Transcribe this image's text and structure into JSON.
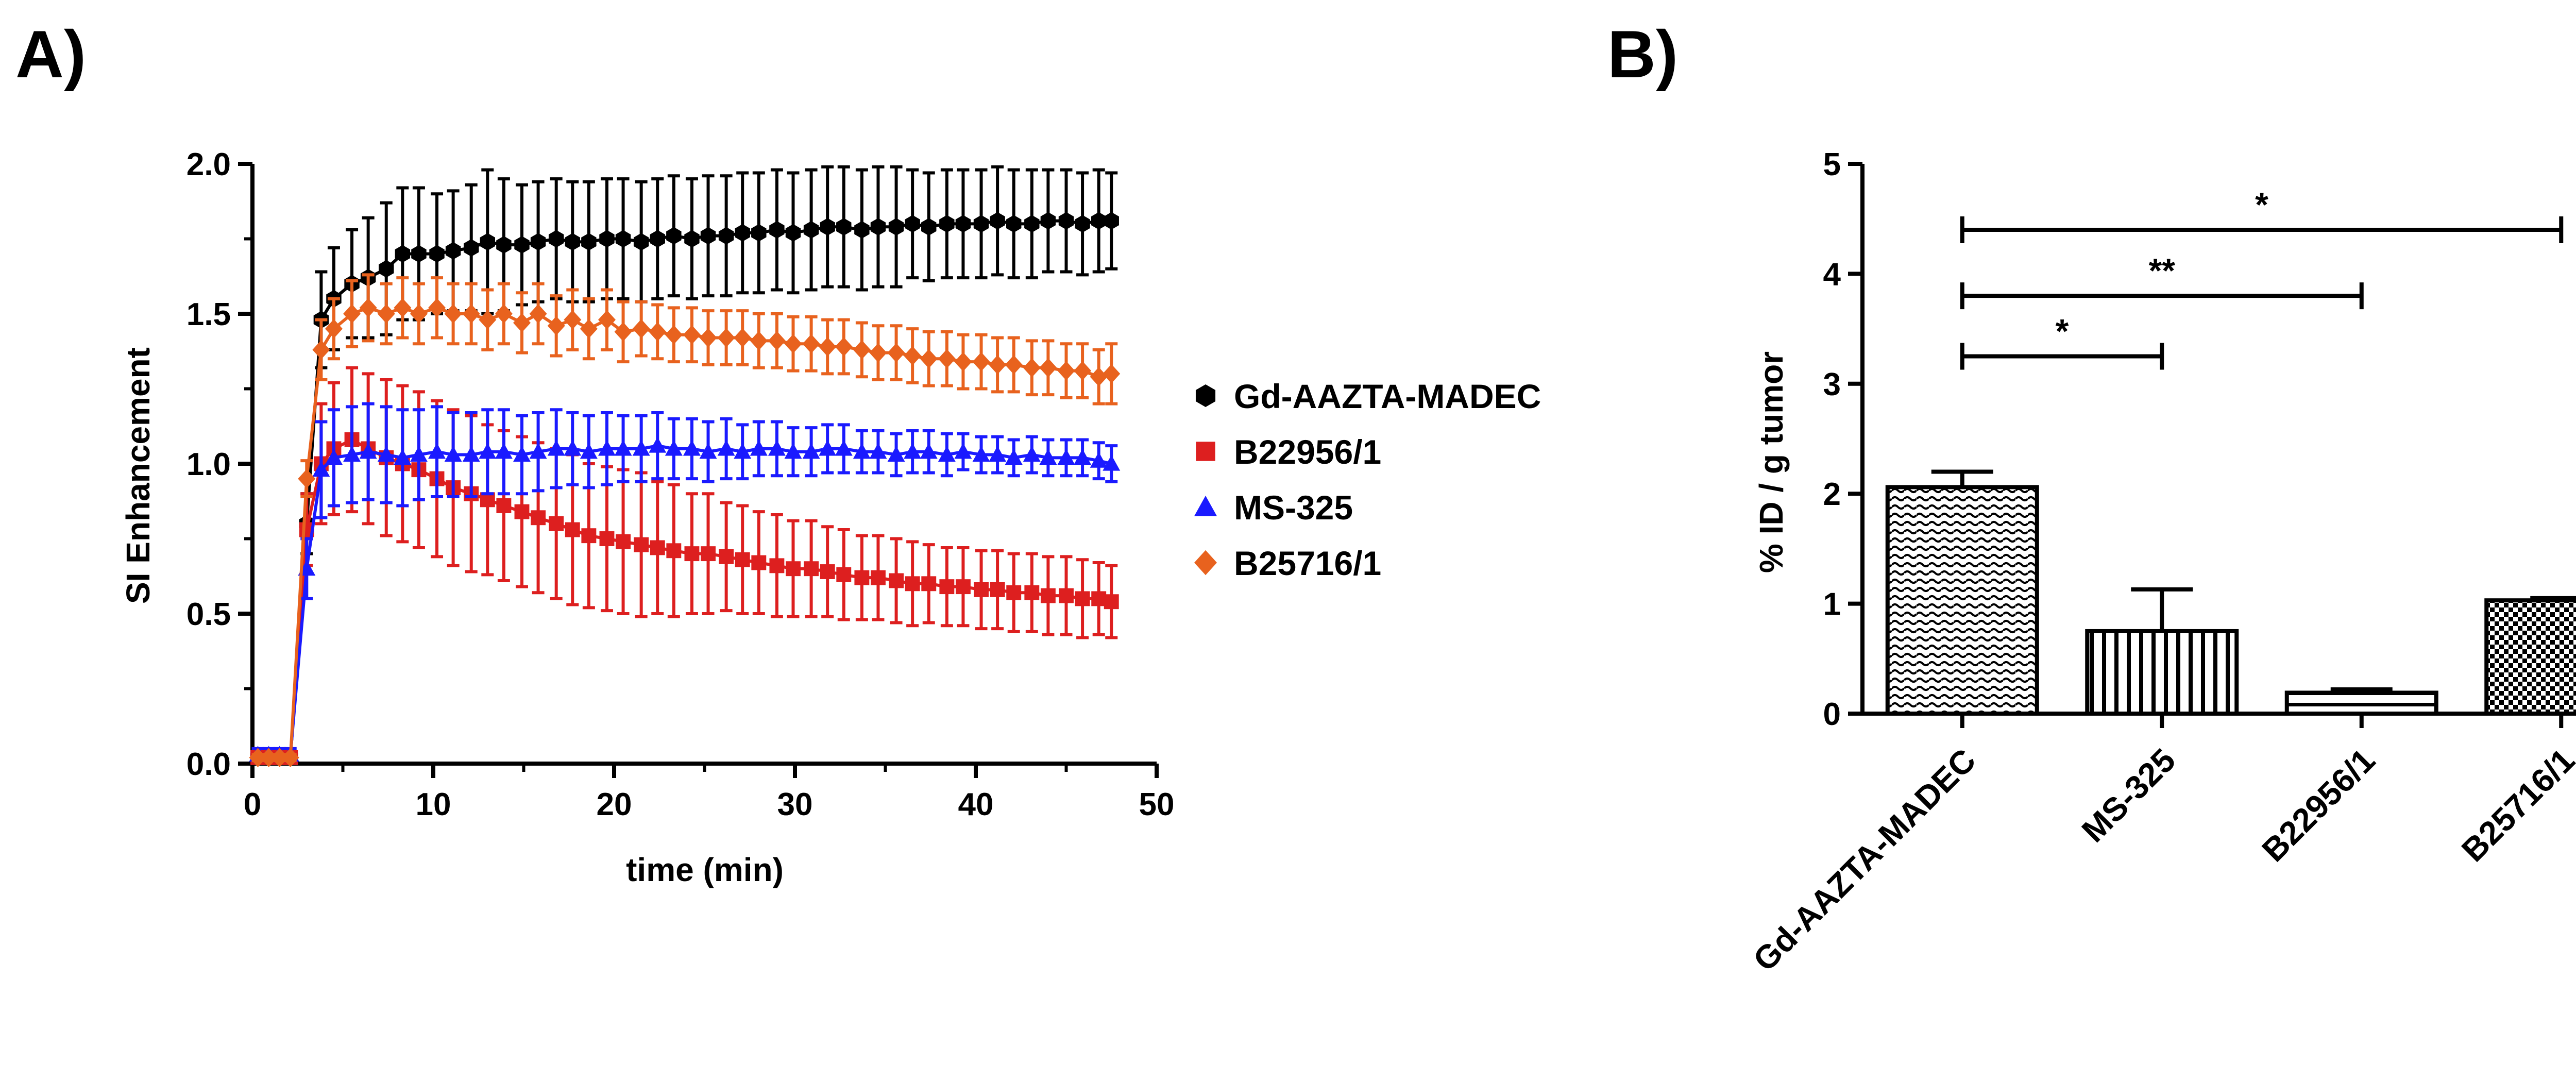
{
  "panel_labels": {
    "a": "A)",
    "b": "B)"
  },
  "colors": {
    "Gd-AAZTA-MADEC": "#000000",
    "B22956/1": "#dd1f1f",
    "MS-325": "#1a1aff",
    "B25716/1": "#e8621e",
    "axis": "#000000"
  },
  "chart_data": [
    {
      "type": "line",
      "panel": "A)",
      "title": "",
      "xlabel": "time (min)",
      "ylabel": "SI Enhancement",
      "xlim": [
        0,
        50
      ],
      "ylim": [
        0,
        2.0
      ],
      "xticks": [
        "0",
        "10",
        "20",
        "30",
        "40",
        "50"
      ],
      "yticks": [
        "0.0",
        "0.5",
        "1.0",
        "1.5",
        "2.0"
      ],
      "legend_position": "right",
      "series": [
        {
          "name": "Gd-AAZTA-MADEC",
          "marker": "hexagon",
          "x": [
            0.3,
            0.9,
            1.5,
            2.1,
            3.0,
            3.8,
            4.5,
            5.5,
            6.4,
            7.4,
            8.3,
            9.2,
            10.2,
            11.1,
            12.1,
            13.0,
            13.9,
            14.9,
            15.8,
            16.8,
            17.7,
            18.6,
            19.6,
            20.5,
            21.5,
            22.4,
            23.3,
            24.3,
            25.2,
            26.2,
            27.1,
            28.0,
            29.0,
            29.9,
            30.9,
            31.8,
            32.7,
            33.7,
            34.6,
            35.6,
            36.5,
            37.4,
            38.4,
            39.3,
            40.3,
            41.2,
            42.1,
            43.1,
            44.0,
            45.0,
            45.9,
            46.8,
            47.5
          ],
          "y": [
            0.02,
            0.02,
            0.02,
            0.02,
            0.8,
            1.48,
            1.55,
            1.6,
            1.62,
            1.65,
            1.7,
            1.7,
            1.7,
            1.71,
            1.72,
            1.74,
            1.73,
            1.73,
            1.74,
            1.75,
            1.74,
            1.74,
            1.75,
            1.75,
            1.74,
            1.75,
            1.76,
            1.75,
            1.76,
            1.76,
            1.77,
            1.77,
            1.78,
            1.77,
            1.78,
            1.79,
            1.79,
            1.78,
            1.79,
            1.79,
            1.8,
            1.79,
            1.8,
            1.8,
            1.8,
            1.81,
            1.8,
            1.8,
            1.81,
            1.81,
            1.8,
            1.81,
            1.81
          ],
          "error": [
            0.01,
            0.01,
            0.01,
            0.01,
            0.1,
            0.16,
            0.17,
            0.18,
            0.2,
            0.22,
            0.22,
            0.22,
            0.2,
            0.2,
            0.21,
            0.24,
            0.22,
            0.2,
            0.2,
            0.2,
            0.2,
            0.2,
            0.2,
            0.2,
            0.2,
            0.2,
            0.2,
            0.2,
            0.2,
            0.2,
            0.2,
            0.2,
            0.2,
            0.2,
            0.2,
            0.2,
            0.2,
            0.2,
            0.2,
            0.2,
            0.18,
            0.18,
            0.18,
            0.18,
            0.18,
            0.18,
            0.18,
            0.18,
            0.17,
            0.17,
            0.17,
            0.17,
            0.16
          ]
        },
        {
          "name": "B22956/1",
          "marker": "square",
          "x": [
            0.3,
            0.9,
            1.5,
            2.1,
            3.0,
            3.8,
            4.5,
            5.5,
            6.4,
            7.4,
            8.3,
            9.2,
            10.2,
            11.1,
            12.1,
            13.0,
            13.9,
            14.9,
            15.8,
            16.8,
            17.7,
            18.6,
            19.6,
            20.5,
            21.5,
            22.4,
            23.3,
            24.3,
            25.2,
            26.2,
            27.1,
            28.0,
            29.0,
            29.9,
            30.9,
            31.8,
            32.7,
            33.7,
            34.6,
            35.6,
            36.5,
            37.4,
            38.4,
            39.3,
            40.3,
            41.2,
            42.1,
            43.1,
            44.0,
            45.0,
            45.9,
            46.8,
            47.5
          ],
          "y": [
            0.02,
            0.02,
            0.02,
            0.02,
            0.78,
            1.0,
            1.05,
            1.08,
            1.05,
            1.02,
            1.0,
            0.98,
            0.95,
            0.92,
            0.9,
            0.88,
            0.86,
            0.84,
            0.82,
            0.8,
            0.78,
            0.76,
            0.75,
            0.74,
            0.73,
            0.72,
            0.71,
            0.7,
            0.7,
            0.69,
            0.68,
            0.67,
            0.66,
            0.65,
            0.65,
            0.64,
            0.63,
            0.62,
            0.62,
            0.61,
            0.6,
            0.6,
            0.59,
            0.59,
            0.58,
            0.58,
            0.57,
            0.57,
            0.56,
            0.56,
            0.55,
            0.55,
            0.54
          ],
          "error": [
            0.01,
            0.01,
            0.01,
            0.01,
            0.12,
            0.2,
            0.22,
            0.24,
            0.25,
            0.26,
            0.26,
            0.26,
            0.26,
            0.26,
            0.26,
            0.25,
            0.25,
            0.25,
            0.25,
            0.25,
            0.25,
            0.24,
            0.24,
            0.24,
            0.24,
            0.22,
            0.22,
            0.2,
            0.2,
            0.18,
            0.18,
            0.17,
            0.17,
            0.16,
            0.16,
            0.15,
            0.15,
            0.14,
            0.14,
            0.14,
            0.14,
            0.13,
            0.13,
            0.13,
            0.13,
            0.13,
            0.13,
            0.13,
            0.13,
            0.13,
            0.13,
            0.12,
            0.12
          ]
        },
        {
          "name": "MS-325",
          "marker": "triangle",
          "x": [
            0.3,
            0.9,
            1.5,
            2.1,
            3.0,
            3.8,
            4.5,
            5.5,
            6.4,
            7.4,
            8.3,
            9.2,
            10.2,
            11.1,
            12.1,
            13.0,
            13.9,
            14.9,
            15.8,
            16.8,
            17.7,
            18.6,
            19.6,
            20.5,
            21.5,
            22.4,
            23.3,
            24.3,
            25.2,
            26.2,
            27.1,
            28.0,
            29.0,
            29.9,
            30.9,
            31.8,
            32.7,
            33.7,
            34.6,
            35.6,
            36.5,
            37.4,
            38.4,
            39.3,
            40.3,
            41.2,
            42.1,
            43.1,
            44.0,
            45.0,
            45.9,
            46.8,
            47.5
          ],
          "y": [
            0.03,
            0.03,
            0.03,
            0.03,
            0.65,
            0.98,
            1.02,
            1.03,
            1.04,
            1.03,
            1.02,
            1.03,
            1.04,
            1.03,
            1.03,
            1.04,
            1.04,
            1.03,
            1.04,
            1.05,
            1.05,
            1.04,
            1.05,
            1.05,
            1.05,
            1.06,
            1.05,
            1.05,
            1.04,
            1.05,
            1.04,
            1.05,
            1.05,
            1.04,
            1.04,
            1.05,
            1.05,
            1.04,
            1.04,
            1.03,
            1.04,
            1.04,
            1.03,
            1.04,
            1.03,
            1.03,
            1.02,
            1.03,
            1.02,
            1.02,
            1.02,
            1.01,
            1.0
          ],
          "error": [
            0.02,
            0.02,
            0.02,
            0.02,
            0.1,
            0.16,
            0.16,
            0.16,
            0.16,
            0.16,
            0.16,
            0.15,
            0.15,
            0.14,
            0.14,
            0.14,
            0.14,
            0.13,
            0.13,
            0.13,
            0.12,
            0.12,
            0.12,
            0.11,
            0.11,
            0.11,
            0.1,
            0.1,
            0.1,
            0.1,
            0.09,
            0.09,
            0.09,
            0.08,
            0.08,
            0.08,
            0.08,
            0.07,
            0.07,
            0.07,
            0.07,
            0.07,
            0.07,
            0.06,
            0.06,
            0.06,
            0.06,
            0.06,
            0.06,
            0.06,
            0.06,
            0.06,
            0.06
          ]
        },
        {
          "name": "B25716/1",
          "marker": "diamond",
          "x": [
            0.3,
            0.9,
            1.5,
            2.1,
            3.0,
            3.8,
            4.5,
            5.5,
            6.4,
            7.4,
            8.3,
            9.2,
            10.2,
            11.1,
            12.1,
            13.0,
            13.9,
            14.9,
            15.8,
            16.8,
            17.7,
            18.6,
            19.6,
            20.5,
            21.5,
            22.4,
            23.3,
            24.3,
            25.2,
            26.2,
            27.1,
            28.0,
            29.0,
            29.9,
            30.9,
            31.8,
            32.7,
            33.7,
            34.6,
            35.6,
            36.5,
            37.4,
            38.4,
            39.3,
            40.3,
            41.2,
            42.1,
            43.1,
            44.0,
            45.0,
            45.9,
            46.8,
            47.5
          ],
          "y": [
            0.02,
            0.02,
            0.02,
            0.02,
            0.95,
            1.38,
            1.45,
            1.5,
            1.52,
            1.5,
            1.52,
            1.5,
            1.52,
            1.5,
            1.5,
            1.48,
            1.5,
            1.47,
            1.5,
            1.46,
            1.48,
            1.45,
            1.48,
            1.44,
            1.45,
            1.44,
            1.43,
            1.43,
            1.42,
            1.42,
            1.42,
            1.41,
            1.41,
            1.4,
            1.4,
            1.39,
            1.39,
            1.38,
            1.37,
            1.37,
            1.36,
            1.35,
            1.35,
            1.34,
            1.34,
            1.33,
            1.33,
            1.32,
            1.32,
            1.31,
            1.31,
            1.29,
            1.3
          ],
          "error": [
            0.01,
            0.01,
            0.01,
            0.01,
            0.06,
            0.1,
            0.1,
            0.11,
            0.11,
            0.1,
            0.1,
            0.1,
            0.1,
            0.1,
            0.1,
            0.1,
            0.1,
            0.1,
            0.1,
            0.1,
            0.1,
            0.1,
            0.1,
            0.1,
            0.09,
            0.09,
            0.09,
            0.09,
            0.09,
            0.09,
            0.09,
            0.09,
            0.09,
            0.09,
            0.09,
            0.09,
            0.09,
            0.09,
            0.09,
            0.09,
            0.09,
            0.09,
            0.09,
            0.09,
            0.09,
            0.09,
            0.09,
            0.09,
            0.09,
            0.09,
            0.09,
            0.09,
            0.1
          ]
        }
      ]
    },
    {
      "type": "bar",
      "panel": "B)",
      "title": "",
      "xlabel": "",
      "ylabel": "% ID / g tumor",
      "ylim": [
        0,
        5
      ],
      "yticks": [
        "0",
        "1",
        "2",
        "3",
        "4",
        "5"
      ],
      "categories": [
        "Gd-AAZTA-MADEC",
        "MS-325",
        "B22956/1",
        "B25716/1"
      ],
      "values": [
        2.06,
        0.75,
        0.19,
        1.03
      ],
      "error": [
        0.14,
        0.38,
        0.03,
        0.02
      ],
      "patterns": [
        "wavy",
        "vertical-lines",
        "horizontal-lines",
        "checker"
      ],
      "significance": [
        {
          "from": 0,
          "to": 1,
          "label": "*",
          "y": 3.25
        },
        {
          "from": 0,
          "to": 2,
          "label": "**",
          "y": 3.8
        },
        {
          "from": 0,
          "to": 3,
          "label": "*",
          "y": 4.4
        }
      ]
    }
  ]
}
